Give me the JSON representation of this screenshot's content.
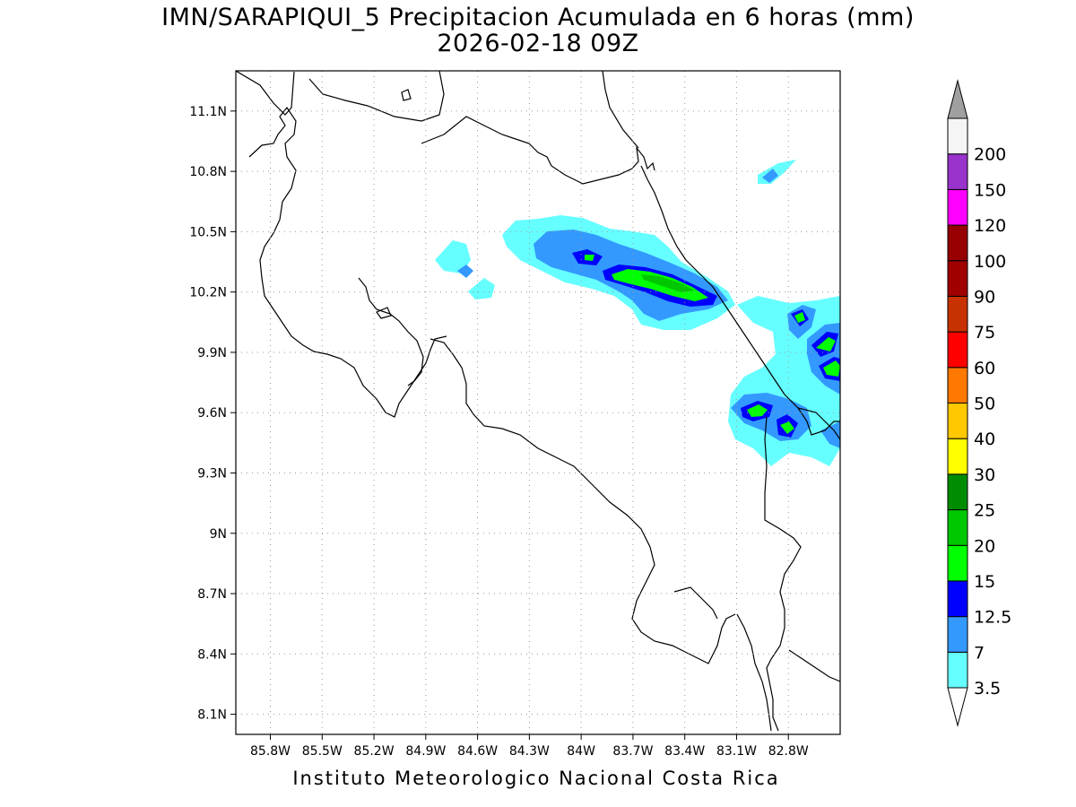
{
  "title": {
    "line1": "IMN/SARAPIQUI_5 Precipitacion Acumulada en 6 horas (mm)",
    "line2": "2026-02-18 09Z"
  },
  "footer": "Instituto Meteorologico Nacional Costa Rica",
  "map": {
    "lon_range": [
      -86.0,
      -82.5
    ],
    "lat_range": [
      8.0,
      11.3
    ],
    "lon_ticks": [
      {
        "value": -85.8,
        "label": "85.8W"
      },
      {
        "value": -85.5,
        "label": "85.5W"
      },
      {
        "value": -85.2,
        "label": "85.2W"
      },
      {
        "value": -84.9,
        "label": "84.9W"
      },
      {
        "value": -84.6,
        "label": "84.6W"
      },
      {
        "value": -84.3,
        "label": "84.3W"
      },
      {
        "value": -84.0,
        "label": "84W"
      },
      {
        "value": -83.7,
        "label": "83.7W"
      },
      {
        "value": -83.4,
        "label": "83.4W"
      },
      {
        "value": -83.1,
        "label": "83.1W"
      },
      {
        "value": -82.8,
        "label": "82.8W"
      }
    ],
    "lat_ticks": [
      {
        "value": 11.1,
        "label": "11.1N"
      },
      {
        "value": 10.8,
        "label": "10.8N"
      },
      {
        "value": 10.5,
        "label": "10.5N"
      },
      {
        "value": 10.2,
        "label": "10.2N"
      },
      {
        "value": 9.9,
        "label": "9.9N"
      },
      {
        "value": 9.6,
        "label": "9.6N"
      },
      {
        "value": 9.3,
        "label": "9.3N"
      },
      {
        "value": 9.0,
        "label": "9N"
      },
      {
        "value": 8.7,
        "label": "8.7N"
      },
      {
        "value": 8.4,
        "label": "8.4N"
      },
      {
        "value": 8.1,
        "label": "8.1N"
      }
    ],
    "grid": true,
    "grid_style": "dotted"
  },
  "colorbar": {
    "units": "mm",
    "levels": [
      {
        "label": "3.5",
        "color": "#66ffff"
      },
      {
        "label": "7",
        "color": "#3399ff"
      },
      {
        "label": "12.5",
        "color": "#0000ff"
      },
      {
        "label": "15",
        "color": "#00ff00"
      },
      {
        "label": "20",
        "color": "#00c800"
      },
      {
        "label": "25",
        "color": "#008c00"
      },
      {
        "label": "30",
        "color": "#ffff00"
      },
      {
        "label": "40",
        "color": "#ffc800"
      },
      {
        "label": "50",
        "color": "#ff7800"
      },
      {
        "label": "60",
        "color": "#ff0000"
      },
      {
        "label": "75",
        "color": "#c83200"
      },
      {
        "label": "90",
        "color": "#a00000"
      },
      {
        "label": "100",
        "color": "#960000"
      },
      {
        "label": "120",
        "color": "#ff00ff"
      },
      {
        "label": "150",
        "color": "#9933cc"
      },
      {
        "label": "200",
        "color": "#f5f5f5"
      }
    ],
    "under_color": "#ffffff",
    "over_color": "#a0a0a0"
  }
}
